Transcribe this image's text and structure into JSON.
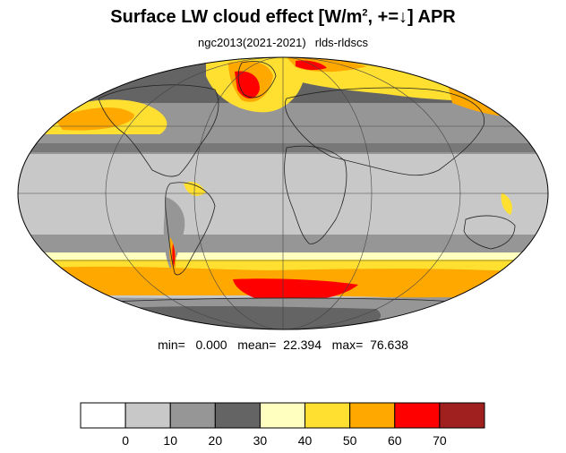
{
  "title": {
    "main": "Surface LW cloud effect [W/m",
    "superscript": "2",
    "suffix": ", +=↓]  APR"
  },
  "subtitle": {
    "left": "ngc2013(2021-2021)",
    "right": "rlds-rldscs"
  },
  "stats": {
    "text": "min=   0.000   mean=  22.394   max=  76.638"
  },
  "colorbar": {
    "levels": [
      "0",
      "10",
      "20",
      "30",
      "40",
      "50",
      "60",
      "70"
    ],
    "colors": [
      "#ffffff",
      "#c8c8c8",
      "#969696",
      "#646464",
      "#ffffc0",
      "#ffe030",
      "#ffa800",
      "#ff0000",
      "#a02020"
    ]
  },
  "map": {
    "projection": "mollweide",
    "ocean_base_color": "#c8c8c8"
  }
}
